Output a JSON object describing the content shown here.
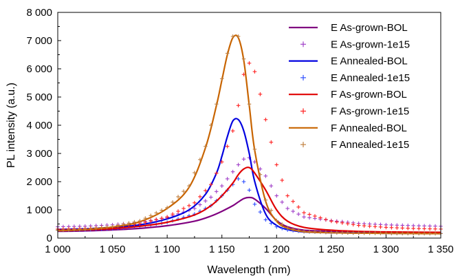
{
  "chart_data": {
    "type": "line",
    "xlabel": "Wavelength (nm)",
    "ylabel": "PL intensity (a.u.)",
    "xlim": [
      1000,
      1350
    ],
    "ylim": [
      0,
      8000
    ],
    "x_ticks": [
      1000,
      1050,
      1100,
      1150,
      1200,
      1250,
      1300,
      1350
    ],
    "x_tick_labels": [
      "1 000",
      "1 050",
      "1 100",
      "1 150",
      "1 200",
      "1 250",
      "1 300",
      "1 350"
    ],
    "y_ticks": [
      0,
      1000,
      2000,
      3000,
      4000,
      5000,
      6000,
      7000,
      8000
    ],
    "y_tick_labels": [
      "0",
      "1 000",
      "2 000",
      "3 000",
      "4 000",
      "5 000",
      "6 000",
      "7 000",
      "8 000"
    ],
    "grid": false,
    "legend_position": "top-right",
    "series": [
      {
        "name": "E As-grown-BOL",
        "style": "line",
        "color": "#800080",
        "x": [
          1000,
          1025,
          1050,
          1075,
          1100,
          1125,
          1140,
          1150,
          1160,
          1165,
          1170,
          1175,
          1180,
          1190,
          1200,
          1210,
          1225,
          1250,
          1275,
          1300,
          1325,
          1350
        ],
        "y": [
          240,
          255,
          290,
          345,
          440,
          600,
          780,
          950,
          1150,
          1280,
          1400,
          1440,
          1380,
          1050,
          620,
          400,
          280,
          240,
          215,
          205,
          200,
          195
        ]
      },
      {
        "name": "E As-grown-1e15",
        "style": "markers",
        "marker": "+",
        "color": "#a040c8",
        "x": [
          1000,
          1025,
          1050,
          1075,
          1100,
          1125,
          1140,
          1150,
          1160,
          1165,
          1170,
          1175,
          1180,
          1190,
          1200,
          1210,
          1225,
          1250,
          1275,
          1300,
          1325,
          1350
        ],
        "y": [
          400,
          420,
          470,
          560,
          730,
          1050,
          1450,
          1850,
          2350,
          2600,
          2800,
          2850,
          2700,
          2200,
          1500,
          1050,
          750,
          620,
          520,
          470,
          440,
          420
        ]
      },
      {
        "name": "E Annealed-BOL",
        "style": "line",
        "color": "#0000e0",
        "x": [
          1000,
          1025,
          1050,
          1075,
          1100,
          1120,
          1135,
          1145,
          1150,
          1155,
          1160,
          1165,
          1170,
          1175,
          1180,
          1190,
          1200,
          1210,
          1225,
          1250,
          1275,
          1300,
          1325,
          1350
        ],
        "y": [
          310,
          330,
          380,
          470,
          680,
          1000,
          1550,
          2300,
          2900,
          3600,
          4150,
          4200,
          3800,
          3000,
          2000,
          850,
          450,
          300,
          220,
          190,
          180,
          170,
          165,
          160
        ]
      },
      {
        "name": "E Annealed-1e15",
        "style": "markers",
        "marker": "+",
        "color": "#3050ff",
        "x": [
          1000,
          1025,
          1050,
          1075,
          1100,
          1125,
          1140,
          1150,
          1160,
          1165,
          1170,
          1175,
          1180,
          1190,
          1200,
          1210,
          1225,
          1250,
          1275,
          1300,
          1325,
          1350
        ],
        "y": [
          280,
          300,
          340,
          420,
          560,
          850,
          1150,
          1500,
          1900,
          2100,
          2000,
          1700,
          1200,
          650,
          400,
          290,
          230,
          200,
          185,
          175,
          170,
          165
        ]
      },
      {
        "name": "F As-grown-BOL",
        "style": "line",
        "color": "#e00000",
        "x": [
          1000,
          1025,
          1050,
          1075,
          1100,
          1125,
          1140,
          1150,
          1160,
          1165,
          1170,
          1175,
          1180,
          1190,
          1200,
          1210,
          1225,
          1250,
          1275,
          1300,
          1325,
          1350
        ],
        "y": [
          280,
          300,
          340,
          420,
          560,
          820,
          1150,
          1500,
          1950,
          2250,
          2450,
          2500,
          2300,
          1700,
          1000,
          600,
          380,
          280,
          240,
          220,
          210,
          205
        ]
      },
      {
        "name": "F As-grown-1e15",
        "style": "markers",
        "marker": "+",
        "color": "#ff2020",
        "x": [
          1000,
          1025,
          1050,
          1075,
          1100,
          1125,
          1140,
          1150,
          1160,
          1165,
          1170,
          1175,
          1180,
          1185,
          1190,
          1200,
          1210,
          1225,
          1250,
          1275,
          1300,
          1325,
          1350
        ],
        "y": [
          320,
          340,
          400,
          510,
          750,
          1250,
          1900,
          2700,
          3800,
          4700,
          5800,
          6200,
          5900,
          5100,
          4200,
          2600,
          1500,
          900,
          600,
          450,
          380,
          340,
          320
        ]
      },
      {
        "name": "F Annealed-BOL",
        "style": "line",
        "color": "#c86400",
        "x": [
          1000,
          1025,
          1050,
          1075,
          1100,
          1120,
          1135,
          1145,
          1150,
          1155,
          1160,
          1165,
          1170,
          1175,
          1180,
          1190,
          1200,
          1210,
          1225,
          1250,
          1275,
          1300,
          1325,
          1350
        ],
        "y": [
          260,
          300,
          390,
          580,
          1050,
          1800,
          3200,
          4700,
          5600,
          6500,
          7100,
          7100,
          6300,
          4700,
          3100,
          1300,
          600,
          350,
          230,
          190,
          175,
          165,
          160,
          155
        ]
      },
      {
        "name": "F Annealed-1e15",
        "style": "markers",
        "marker": "+",
        "color": "#c08040",
        "x": [
          1000,
          1025,
          1050,
          1075,
          1100,
          1120,
          1135,
          1145,
          1150,
          1155,
          1160,
          1165,
          1170,
          1175,
          1180,
          1190,
          1200,
          1210,
          1225,
          1250,
          1275,
          1300,
          1325,
          1350
        ],
        "y": [
          280,
          320,
          410,
          610,
          1080,
          1850,
          3250,
          4750,
          5650,
          6550,
          7150,
          7150,
          6350,
          4750,
          3150,
          1350,
          620,
          360,
          240,
          200,
          180,
          170,
          165,
          160
        ]
      }
    ]
  }
}
